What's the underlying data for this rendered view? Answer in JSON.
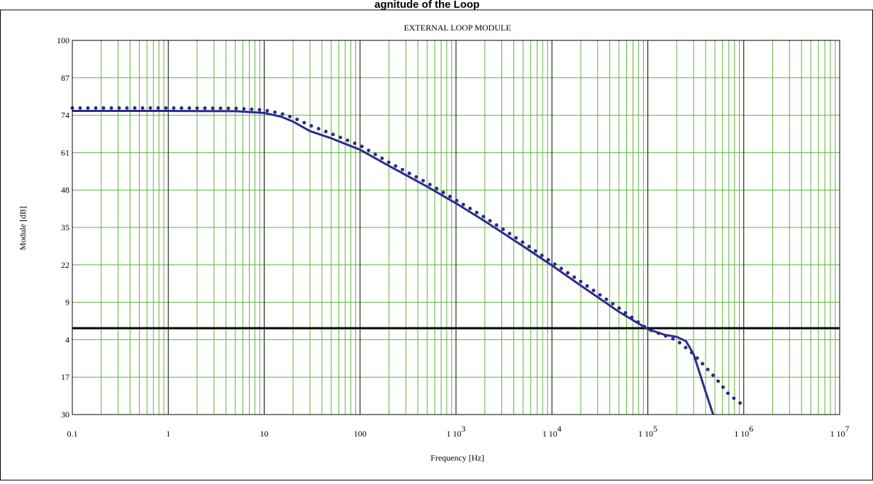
{
  "caption_partial": "agnitude of the Loop",
  "chart_data": {
    "type": "line",
    "title": "EXTERNAL LOOP MODULE",
    "xlabel": "Frequency [Hz]",
    "ylabel": "Module [dB]",
    "x_scale": "log",
    "xlim": [
      0.1,
      10000000
    ],
    "ylim": [
      -30,
      100
    ],
    "grid": true,
    "x_tick_values": [
      0.1,
      1,
      10,
      100,
      1000,
      10000,
      100000,
      1000000,
      10000000
    ],
    "x_tick_labels": [
      {
        "base": "0.1",
        "exp": ""
      },
      {
        "base": "1",
        "exp": ""
      },
      {
        "base": "10",
        "exp": ""
      },
      {
        "base": "100",
        "exp": ""
      },
      {
        "base": "1 10",
        "exp": "3"
      },
      {
        "base": "1 10",
        "exp": "4"
      },
      {
        "base": "1 10",
        "exp": "5"
      },
      {
        "base": "1 10",
        "exp": "6"
      },
      {
        "base": "1 10",
        "exp": "7"
      }
    ],
    "y_tick_values": [
      100,
      87,
      74,
      61,
      48,
      35,
      22,
      9,
      -4,
      -17,
      -30
    ],
    "y_tick_labels": [
      "100",
      "87",
      "74",
      "61",
      "48",
      "35",
      "22",
      "9",
      "4",
      "17",
      "30"
    ],
    "reference_line": {
      "y": 0
    },
    "series": [
      {
        "style": "solid",
        "color": "#2b2b8c",
        "x": [
          0.1,
          1,
          5,
          10,
          15,
          20,
          30,
          50,
          100,
          200,
          500,
          1000,
          2000,
          5000,
          10000,
          20000,
          50000,
          100000,
          150000,
          200000,
          250000,
          300000,
          400000,
          480000
        ],
        "y": [
          75.5,
          75.5,
          75.4,
          74.8,
          73.5,
          71.8,
          68.5,
          66,
          62,
          56.4,
          49.2,
          43.4,
          37.2,
          28.5,
          21.8,
          14.8,
          5.7,
          -0.3,
          -2.3,
          -3.0,
          -4.5,
          -9,
          -22,
          -30
        ]
      },
      {
        "style": "dotted",
        "color": "#2b2b8c",
        "x": [
          0.1,
          1,
          5,
          10,
          15,
          20,
          30,
          50,
          100,
          200,
          500,
          1000,
          2000,
          5000,
          10000,
          20000,
          50000,
          100000,
          200000,
          300000,
          500000,
          700000,
          1000000
        ],
        "y": [
          76.5,
          76.5,
          76.4,
          75.8,
          74.6,
          73.2,
          70.5,
          67.6,
          63.5,
          57.6,
          50.5,
          44.5,
          38.5,
          29.8,
          22.9,
          16.2,
          7,
          -0.3,
          -4.2,
          -9,
          -17,
          -23,
          -27
        ]
      }
    ]
  }
}
